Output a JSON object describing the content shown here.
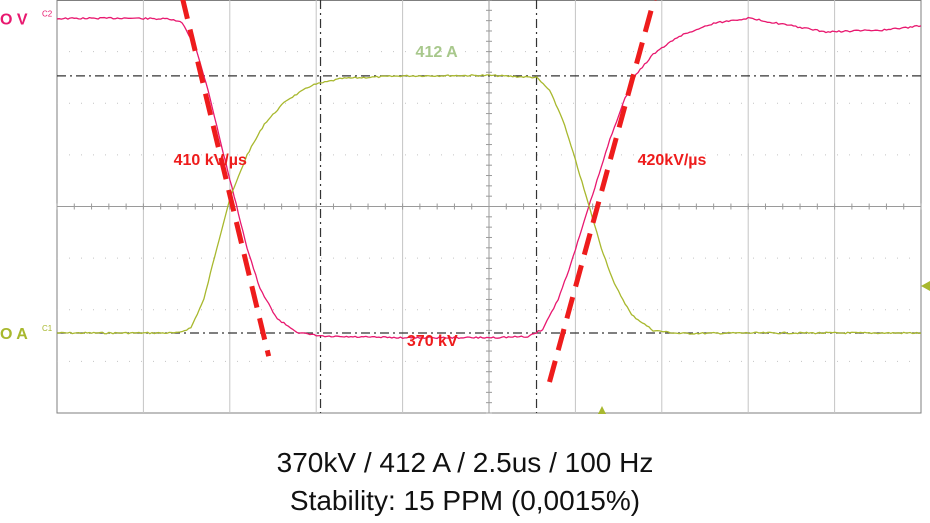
{
  "chart_data": {
    "type": "line",
    "x": {
      "divisions": 10,
      "unit": "div",
      "range": [
        0,
        10
      ]
    },
    "y": {
      "divisions": 7,
      "unit": "div",
      "range": [
        -4.7,
        3.3
      ]
    },
    "grid": true,
    "channel_markers": [
      {
        "label": "O V",
        "tag": "C2",
        "level": 2.94,
        "color": "#e8186f"
      },
      {
        "label": "O A",
        "tag": "C1",
        "level": -3.15,
        "color": "#a8b82e"
      }
    ],
    "series": [
      {
        "channel": "C2",
        "color": "#e8186f",
        "points": [
          [
            0.0,
            2.94
          ],
          [
            0.8,
            2.95
          ],
          [
            1.3,
            2.93
          ],
          [
            1.45,
            2.86
          ],
          [
            1.6,
            2.4
          ],
          [
            1.75,
            1.55
          ],
          [
            1.9,
            0.5
          ],
          [
            2.05,
            -0.5
          ],
          [
            2.2,
            -1.5
          ],
          [
            2.35,
            -2.3
          ],
          [
            2.55,
            -2.88
          ],
          [
            2.8,
            -3.15
          ],
          [
            3.1,
            -3.22
          ],
          [
            4.0,
            -3.24
          ],
          [
            5.0,
            -3.24
          ],
          [
            5.45,
            -3.22
          ],
          [
            5.62,
            -3.08
          ],
          [
            5.8,
            -2.5
          ],
          [
            5.95,
            -1.8
          ],
          [
            6.1,
            -1.0
          ],
          [
            6.25,
            -0.2
          ],
          [
            6.4,
            0.6
          ],
          [
            6.55,
            1.3
          ],
          [
            6.7,
            1.85
          ],
          [
            6.9,
            2.25
          ],
          [
            7.2,
            2.6
          ],
          [
            7.6,
            2.85
          ],
          [
            8.0,
            2.95
          ],
          [
            8.5,
            2.8
          ],
          [
            8.9,
            2.68
          ],
          [
            9.2,
            2.7
          ],
          [
            9.6,
            2.72
          ],
          [
            10.0,
            2.8
          ]
        ]
      },
      {
        "channel": "C1",
        "color": "#a8b82e",
        "points": [
          [
            0.0,
            -3.15
          ],
          [
            1.4,
            -3.15
          ],
          [
            1.55,
            -3.05
          ],
          [
            1.7,
            -2.5
          ],
          [
            1.85,
            -1.5
          ],
          [
            2.0,
            -0.55
          ],
          [
            2.2,
            0.3
          ],
          [
            2.4,
            0.9
          ],
          [
            2.65,
            1.35
          ],
          [
            2.95,
            1.65
          ],
          [
            3.3,
            1.78
          ],
          [
            4.0,
            1.83
          ],
          [
            5.0,
            1.84
          ],
          [
            5.55,
            1.8
          ],
          [
            5.7,
            1.55
          ],
          [
            5.85,
            1.0
          ],
          [
            6.0,
            0.2
          ],
          [
            6.15,
            -0.65
          ],
          [
            6.3,
            -1.5
          ],
          [
            6.45,
            -2.2
          ],
          [
            6.65,
            -2.8
          ],
          [
            6.9,
            -3.1
          ],
          [
            7.2,
            -3.16
          ],
          [
            8.0,
            -3.15
          ],
          [
            10.0,
            -3.15
          ]
        ]
      }
    ],
    "trend_lines": [
      {
        "color": "#ee1c1c",
        "from": [
          1.45,
          3.35
        ],
        "to": [
          2.45,
          -3.6
        ]
      },
      {
        "color": "#ee1c1c",
        "from": [
          5.7,
          -4.1
        ],
        "to": [
          6.95,
          3.55
        ]
      }
    ],
    "annotations": [
      {
        "text": "412 A",
        "x": 4.15,
        "y": 2.2,
        "color": "#a8c88c"
      },
      {
        "text": "410 kV/µs",
        "x": 1.35,
        "y": 0.1,
        "color": "#ee1c1c"
      },
      {
        "text": "420kV/µs",
        "x": 6.72,
        "y": 0.1,
        "color": "#ee1c1c"
      },
      {
        "text": "370  kV",
        "x": 4.05,
        "y": -3.4,
        "color": "#ee1c1c"
      }
    ],
    "cursors": {
      "horizontal": [
        1.83,
        -3.15
      ],
      "vertical": [
        3.05,
        5.55
      ]
    }
  },
  "caption": {
    "line1": "370kV / 412 A / 2.5us / 100 Hz",
    "line2": "Stability:  15 PPM (0,0015%)"
  },
  "colors": {
    "grid": "#c4c4c4",
    "frame": "#7f7f7f",
    "center_axis": "#9a9a9a",
    "cursor": "#333333",
    "trigger_marker": "#a8b82e"
  },
  "icons": {
    "trigger_level_marker": "left-pointing-triangle",
    "trigger_position_marker": "up-pointing-triangle"
  }
}
